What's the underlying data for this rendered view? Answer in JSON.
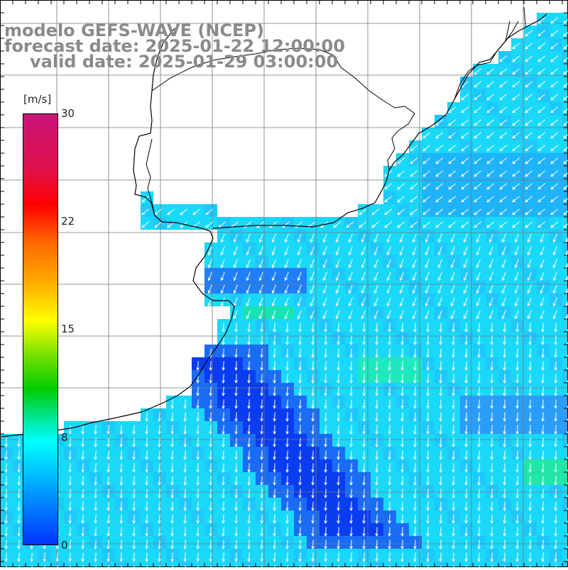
{
  "title": {
    "model": "modelo GEFS-WAVE (NCEP)",
    "forecast": "forecast date: 2025-01-22 12:00:00",
    "valid": "valid date: 2025-01-29 03:00:00"
  },
  "colorbar": {
    "units": "[m/s]",
    "ticks": [
      "30",
      "22",
      "15",
      "8",
      "0"
    ],
    "tick_values": [
      30,
      22,
      15,
      8,
      0
    ],
    "range": [
      0,
      30
    ],
    "colors": [
      "#0033ff",
      "#00aaff",
      "#00ffff",
      "#00e8a0",
      "#00cc00",
      "#66dd00",
      "#ffff00",
      "#ffaa00",
      "#ff6a00",
      "#ff0000",
      "#e0104a",
      "#c8147a"
    ]
  },
  "map": {
    "field": "wind speed and direction",
    "region": "South Atlantic off Rio de la Plata",
    "land_color": "#ffffff",
    "coastline_color": "#000000",
    "grid_color": "#777777",
    "grid": true
  }
}
